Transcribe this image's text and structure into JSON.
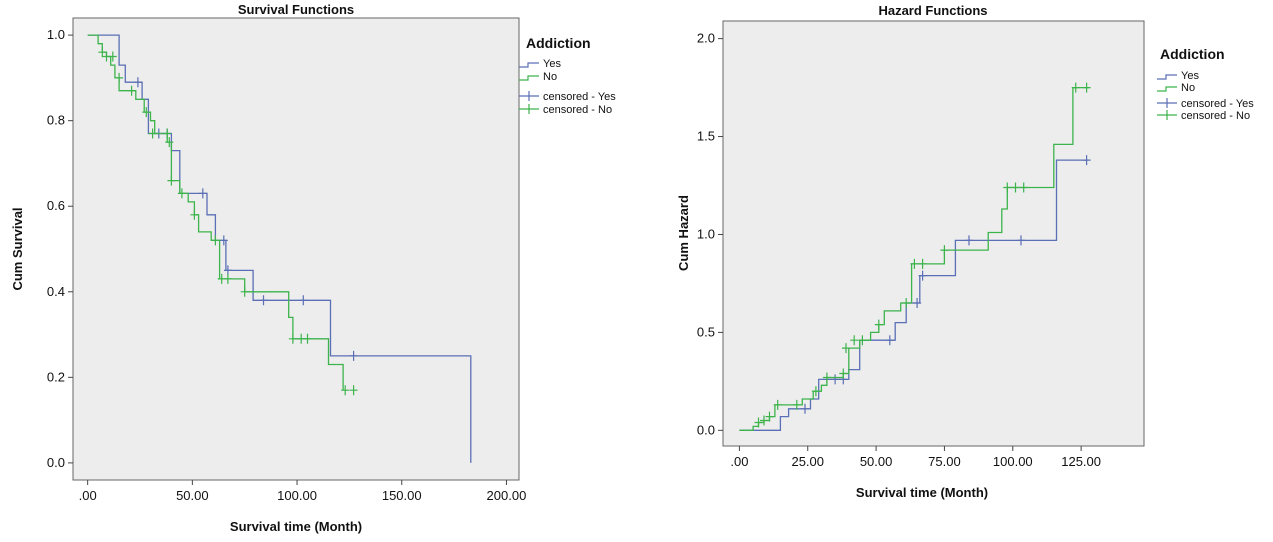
{
  "colors": {
    "yes": "#5a6fb5",
    "no": "#3cb44b",
    "plot_background": "#ededed",
    "frame": "#666666"
  },
  "chart_data": [
    {
      "type": "line",
      "title": "Survival Functions",
      "xlabel": "Survival time (Month)",
      "ylabel": "Cum Survival",
      "xlim": [
        -7,
        206
      ],
      "ylim": [
        -0.04,
        1.04
      ],
      "xticks": [
        0,
        50,
        100,
        150,
        200
      ],
      "xtick_labels": [
        ".00",
        "50.00",
        "100.00",
        "150.00",
        "200.00"
      ],
      "yticks": [
        0,
        0.2,
        0.4,
        0.6,
        0.8,
        1.0
      ],
      "ytick_labels": [
        "0.0",
        "0.2",
        "0.4",
        "0.6",
        "0.8",
        "1.0"
      ],
      "grid": false,
      "legend": {
        "title": "Addiction",
        "position": "top-right",
        "entries": [
          "Yes",
          "No",
          "censored - Yes",
          "censored - No"
        ]
      },
      "series": [
        {
          "name": "Yes",
          "color_key": "yes",
          "step_x": [
            0,
            15,
            18,
            26,
            29,
            32,
            40,
            44,
            57,
            61,
            66,
            79,
            116,
            183,
            183
          ],
          "step_y": [
            1.0,
            0.93,
            0.89,
            0.85,
            0.77,
            0.77,
            0.73,
            0.63,
            0.58,
            0.52,
            0.45,
            0.38,
            0.25,
            0.25,
            0.0
          ],
          "censored": [
            [
              24,
              0.89
            ],
            [
              34,
              0.77
            ],
            [
              38,
              0.77
            ],
            [
              55,
              0.63
            ],
            [
              65,
              0.52
            ],
            [
              67,
              0.45
            ],
            [
              84,
              0.38
            ],
            [
              103,
              0.38
            ],
            [
              127,
              0.25
            ]
          ]
        },
        {
          "name": "No",
          "color_key": "no",
          "step_x": [
            0,
            5,
            7,
            9,
            11,
            13,
            15,
            19,
            23,
            27,
            30,
            32,
            38,
            40,
            44,
            48,
            51,
            53,
            59,
            63,
            75,
            96,
            98,
            115,
            122
          ],
          "step_y": [
            1.0,
            0.98,
            0.96,
            0.95,
            0.93,
            0.9,
            0.87,
            0.87,
            0.85,
            0.82,
            0.8,
            0.77,
            0.75,
            0.66,
            0.63,
            0.61,
            0.58,
            0.54,
            0.52,
            0.43,
            0.4,
            0.34,
            0.29,
            0.23,
            0.17
          ],
          "censored": [
            [
              7,
              0.96
            ],
            [
              9,
              0.95
            ],
            [
              12,
              0.95
            ],
            [
              15,
              0.9
            ],
            [
              21,
              0.87
            ],
            [
              28,
              0.82
            ],
            [
              31,
              0.77
            ],
            [
              38,
              0.77
            ],
            [
              39,
              0.75
            ],
            [
              40,
              0.66
            ],
            [
              45,
              0.63
            ],
            [
              51,
              0.58
            ],
            [
              61,
              0.52
            ],
            [
              64,
              0.43
            ],
            [
              67,
              0.43
            ],
            [
              75,
              0.4
            ],
            [
              98,
              0.29
            ],
            [
              102,
              0.29
            ],
            [
              105,
              0.29
            ],
            [
              123,
              0.17
            ],
            [
              127,
              0.17
            ]
          ]
        }
      ]
    },
    {
      "type": "line",
      "title": "Hazard Functions",
      "xlabel": "Survival time (Month)",
      "ylabel": "Cum Hazard",
      "xlim": [
        -6,
        148
      ],
      "ylim": [
        -0.08,
        2.09
      ],
      "xticks": [
        0,
        25,
        50,
        75,
        100,
        125
      ],
      "xtick_labels": [
        ".00",
        "25.00",
        "50.00",
        "75.00",
        "100.00",
        "125.00"
      ],
      "yticks": [
        0,
        0.5,
        1.0,
        1.5,
        2.0
      ],
      "ytick_labels": [
        "0.0",
        "0.5",
        "1.0",
        "1.5",
        "2.0"
      ],
      "grid": false,
      "legend": {
        "title": "Addiction",
        "position": "top-right",
        "entries": [
          "Yes",
          "No",
          "censored - Yes",
          "censored - No"
        ]
      },
      "series": [
        {
          "name": "Yes",
          "color_key": "yes",
          "step_x": [
            0,
            15,
            18,
            26,
            29,
            32,
            40,
            44,
            57,
            61,
            66,
            79,
            116,
            127
          ],
          "step_y": [
            0.0,
            0.07,
            0.11,
            0.16,
            0.26,
            0.26,
            0.31,
            0.46,
            0.55,
            0.65,
            0.79,
            0.97,
            1.38,
            1.38
          ],
          "censored": [
            [
              24,
              0.11
            ],
            [
              35,
              0.26
            ],
            [
              38,
              0.26
            ],
            [
              55,
              0.46
            ],
            [
              65,
              0.65
            ],
            [
              67,
              0.79
            ],
            [
              84,
              0.97
            ],
            [
              103,
              0.97
            ],
            [
              127,
              1.38
            ]
          ]
        },
        {
          "name": "No",
          "color_key": "no",
          "step_x": [
            0,
            5,
            7,
            9,
            11,
            13,
            19,
            23,
            27,
            30,
            32,
            38,
            40,
            44,
            48,
            51,
            53,
            59,
            63,
            75,
            91,
            96,
            98,
            115,
            122,
            128
          ],
          "step_y": [
            0.0,
            0.02,
            0.04,
            0.05,
            0.07,
            0.13,
            0.13,
            0.16,
            0.2,
            0.23,
            0.27,
            0.29,
            0.42,
            0.46,
            0.5,
            0.54,
            0.61,
            0.65,
            0.85,
            0.92,
            1.01,
            1.13,
            1.24,
            1.46,
            1.75,
            1.75
          ],
          "censored": [
            [
              7,
              0.04
            ],
            [
              9,
              0.05
            ],
            [
              11,
              0.07
            ],
            [
              14,
              0.13
            ],
            [
              21,
              0.13
            ],
            [
              28,
              0.2
            ],
            [
              32,
              0.27
            ],
            [
              38,
              0.29
            ],
            [
              39,
              0.42
            ],
            [
              42,
              0.46
            ],
            [
              45,
              0.46
            ],
            [
              51,
              0.54
            ],
            [
              61,
              0.65
            ],
            [
              64,
              0.85
            ],
            [
              67,
              0.85
            ],
            [
              75,
              0.92
            ],
            [
              98,
              1.24
            ],
            [
              101,
              1.24
            ],
            [
              104,
              1.24
            ],
            [
              123,
              1.75
            ],
            [
              127,
              1.75
            ]
          ]
        }
      ]
    }
  ]
}
